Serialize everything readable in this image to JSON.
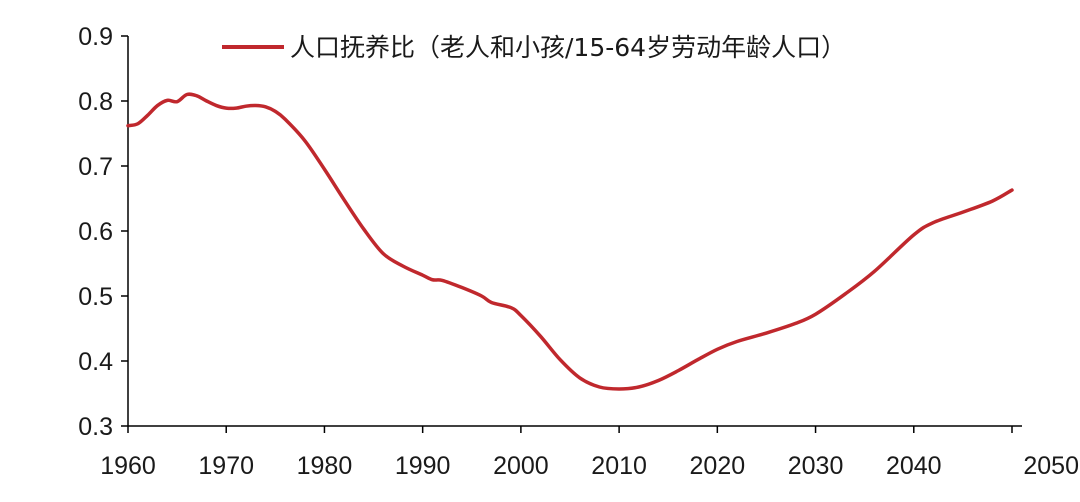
{
  "chart_data": {
    "type": "line",
    "title": "",
    "xlabel": "",
    "ylabel": "",
    "xlim": [
      1960,
      2050
    ],
    "ylim": [
      0.3,
      0.9
    ],
    "x_ticks": [
      1960,
      1970,
      1980,
      1990,
      2000,
      2010,
      2020,
      2030,
      2040,
      2050
    ],
    "y_ticks": [
      0.3,
      0.4,
      0.5,
      0.6,
      0.7,
      0.8,
      0.9
    ],
    "x_tick_labels": [
      "1960",
      "1970",
      "1980",
      "1990",
      "2000",
      "2010",
      "2020",
      "2030",
      "2040",
      "2050"
    ],
    "y_tick_labels": [
      "0.3",
      "0.4",
      "0.5",
      "0.6",
      "0.7",
      "0.8",
      "0.9"
    ],
    "grid": false,
    "legend_position": "top",
    "series": [
      {
        "name": "人口抚养比（老人和小孩/15-64岁劳动年龄人口）",
        "color": "#c0282d",
        "x": [
          1960,
          1961,
          1962,
          1963,
          1964,
          1965,
          1966,
          1967,
          1968,
          1969,
          1970,
          1971,
          1972,
          1973,
          1974,
          1975,
          1976,
          1978,
          1980,
          1982,
          1984,
          1986,
          1988,
          1990,
          1991,
          1992,
          1994,
          1996,
          1997,
          1999,
          2000,
          2002,
          2004,
          2006,
          2008,
          2010,
          2012,
          2014,
          2016,
          2018,
          2020,
          2022,
          2025,
          2028,
          2030,
          2033,
          2036,
          2040,
          2042,
          2045,
          2048,
          2050
        ],
        "values": [
          0.762,
          0.765,
          0.778,
          0.793,
          0.801,
          0.799,
          0.81,
          0.808,
          0.8,
          0.793,
          0.789,
          0.789,
          0.792,
          0.793,
          0.791,
          0.784,
          0.772,
          0.739,
          0.695,
          0.648,
          0.603,
          0.565,
          0.546,
          0.532,
          0.525,
          0.524,
          0.513,
          0.5,
          0.49,
          0.482,
          0.47,
          0.438,
          0.402,
          0.374,
          0.36,
          0.357,
          0.36,
          0.37,
          0.385,
          0.402,
          0.418,
          0.43,
          0.443,
          0.458,
          0.472,
          0.503,
          0.538,
          0.594,
          0.613,
          0.629,
          0.646,
          0.663
        ]
      }
    ]
  }
}
